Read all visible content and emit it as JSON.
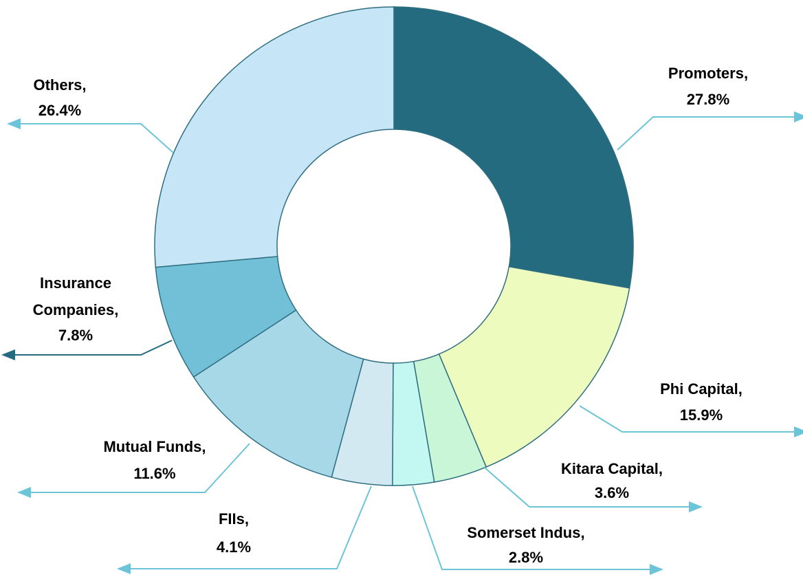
{
  "chart_data": {
    "type": "donut",
    "categories": [
      "Promoters",
      "Phi Capital",
      "Kitara Capital",
      "Somerset Indus",
      "FIIs",
      "Mutual Funds",
      "Insurance Companies",
      "Others"
    ],
    "values": [
      27.8,
      15.9,
      3.6,
      2.8,
      4.1,
      11.6,
      7.8,
      26.4
    ],
    "value_labels": [
      "27.8%",
      "15.9%",
      "3.6%",
      "2.8%",
      "4.1%",
      "11.6%",
      "7.8%",
      "26.4%"
    ],
    "label_separator": ",",
    "colors": [
      "#246b80",
      "#eefbbf",
      "#c9f6d6",
      "#c2f8f1",
      "#d3e9f1",
      "#a7d8e7",
      "#71c0d7",
      "#c6e5f7"
    ]
  }
}
